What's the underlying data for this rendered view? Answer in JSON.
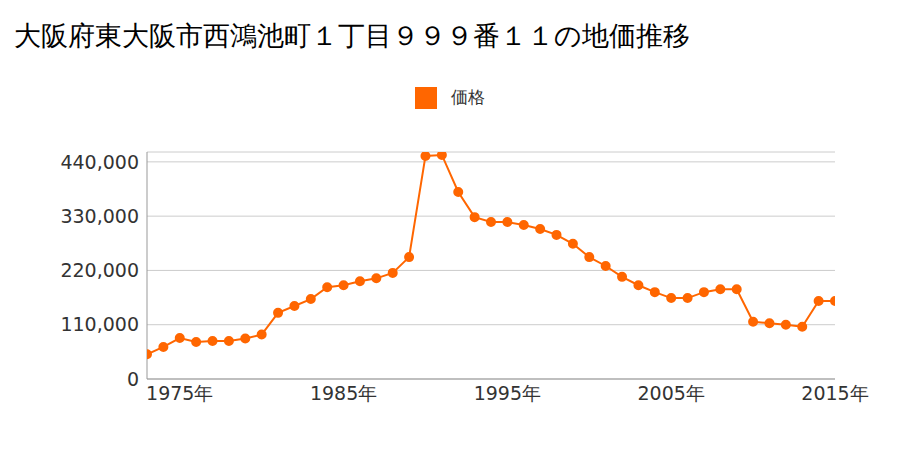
{
  "chart_data": {
    "type": "line",
    "title": "大阪府東大阪市西鴻池町１丁目９９９番１１の地価推移",
    "x": [
      1973,
      1974,
      1975,
      1976,
      1977,
      1978,
      1979,
      1980,
      1981,
      1982,
      1983,
      1984,
      1985,
      1986,
      1987,
      1988,
      1989,
      1990,
      1991,
      1992,
      1993,
      1994,
      1995,
      1996,
      1997,
      1998,
      1999,
      2000,
      2001,
      2002,
      2003,
      2004,
      2005,
      2006,
      2007,
      2008,
      2009,
      2010,
      2011,
      2012,
      2013,
      2014,
      2015
    ],
    "series": [
      {
        "name": "価格",
        "color": "#ff6600",
        "values": [
          50000,
          65000,
          83000,
          75000,
          77000,
          77000,
          82000,
          90000,
          134000,
          148000,
          162000,
          186000,
          190000,
          198000,
          204000,
          215000,
          247000,
          452000,
          454000,
          379000,
          328000,
          318000,
          318000,
          312000,
          304000,
          292000,
          274000,
          247000,
          229000,
          207000,
          190000,
          176000,
          164000,
          164000,
          176000,
          182000,
          182000,
          116000,
          113000,
          110000,
          106000,
          158000,
          158000
        ]
      }
    ],
    "xlim": [
      1973,
      2015
    ],
    "xticks": [
      {
        "value": 1975,
        "label": "1975年"
      },
      {
        "value": 1985,
        "label": "1985年"
      },
      {
        "value": 1995,
        "label": "1995年"
      },
      {
        "value": 2005,
        "label": "2005年"
      },
      {
        "value": 2015,
        "label": "2015年"
      }
    ],
    "ylim": [
      0,
      460000
    ],
    "yticks": [
      0,
      {
        "value": 110000,
        "label": "110,000"
      },
      {
        "value": 220000,
        "label": "220,000"
      },
      {
        "value": 330000,
        "label": "330,000"
      },
      {
        "value": 440000,
        "label": "440,000"
      }
    ],
    "grid": true,
    "legend": "top",
    "marker": "circle"
  }
}
